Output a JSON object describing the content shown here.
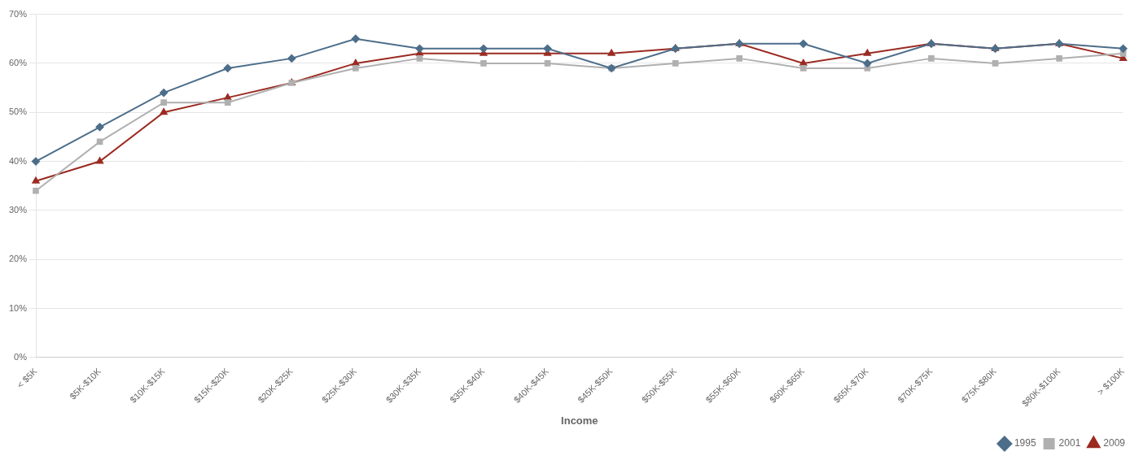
{
  "chart_data": {
    "type": "line",
    "categories": [
      "< $5K",
      "$5K-$10K",
      "$10K-$15K",
      "$15K-$20K",
      "$20K-$25K",
      "$25K-$30K",
      "$30K-$35K",
      "$35K-$40K",
      "$40K-$45K",
      "$45K-$50K",
      "$50K-$55K",
      "$55K-$60K",
      "$60K-$65K",
      "$65K-$70K",
      "$70K-$75K",
      "$75K-$80K",
      "$80K-$100K",
      "> $100K"
    ],
    "series": [
      {
        "name": "1995",
        "color": "#4d6e8a",
        "marker": "diamond",
        "values": [
          0.4,
          0.47,
          0.54,
          0.59,
          0.61,
          0.65,
          0.63,
          0.63,
          0.63,
          0.59,
          0.63,
          0.64,
          0.64,
          0.6,
          0.64,
          0.63,
          0.64,
          0.63
        ]
      },
      {
        "name": "2001",
        "color": "#b0b0b0",
        "marker": "square",
        "values": [
          0.34,
          0.44,
          0.52,
          0.52,
          0.56,
          0.59,
          0.61,
          0.6,
          0.6,
          0.59,
          0.6,
          0.61,
          0.59,
          0.59,
          0.61,
          0.6,
          0.61,
          0.62
        ]
      },
      {
        "name": "2009",
        "color": "#9b2b22",
        "marker": "triangle",
        "values": [
          0.36,
          0.4,
          0.5,
          0.53,
          0.56,
          0.6,
          0.62,
          0.62,
          0.62,
          0.62,
          0.63,
          0.64,
          0.6,
          0.62,
          0.64,
          0.63,
          0.64,
          0.61
        ]
      }
    ],
    "xlabel": "Income",
    "ylim": [
      0.0,
      0.7
    ],
    "yticks": [
      {
        "value": 0.0,
        "label": "0%"
      },
      {
        "value": 0.1,
        "label": "10%"
      },
      {
        "value": 0.2,
        "label": "20%"
      },
      {
        "value": 0.3,
        "label": "30%"
      },
      {
        "value": 0.4,
        "label": "40%"
      },
      {
        "value": 0.5,
        "label": "50%"
      },
      {
        "value": 0.6,
        "label": "60%"
      },
      {
        "value": 0.7,
        "label": "70%"
      }
    ],
    "grid": true,
    "legend": "lower right"
  }
}
